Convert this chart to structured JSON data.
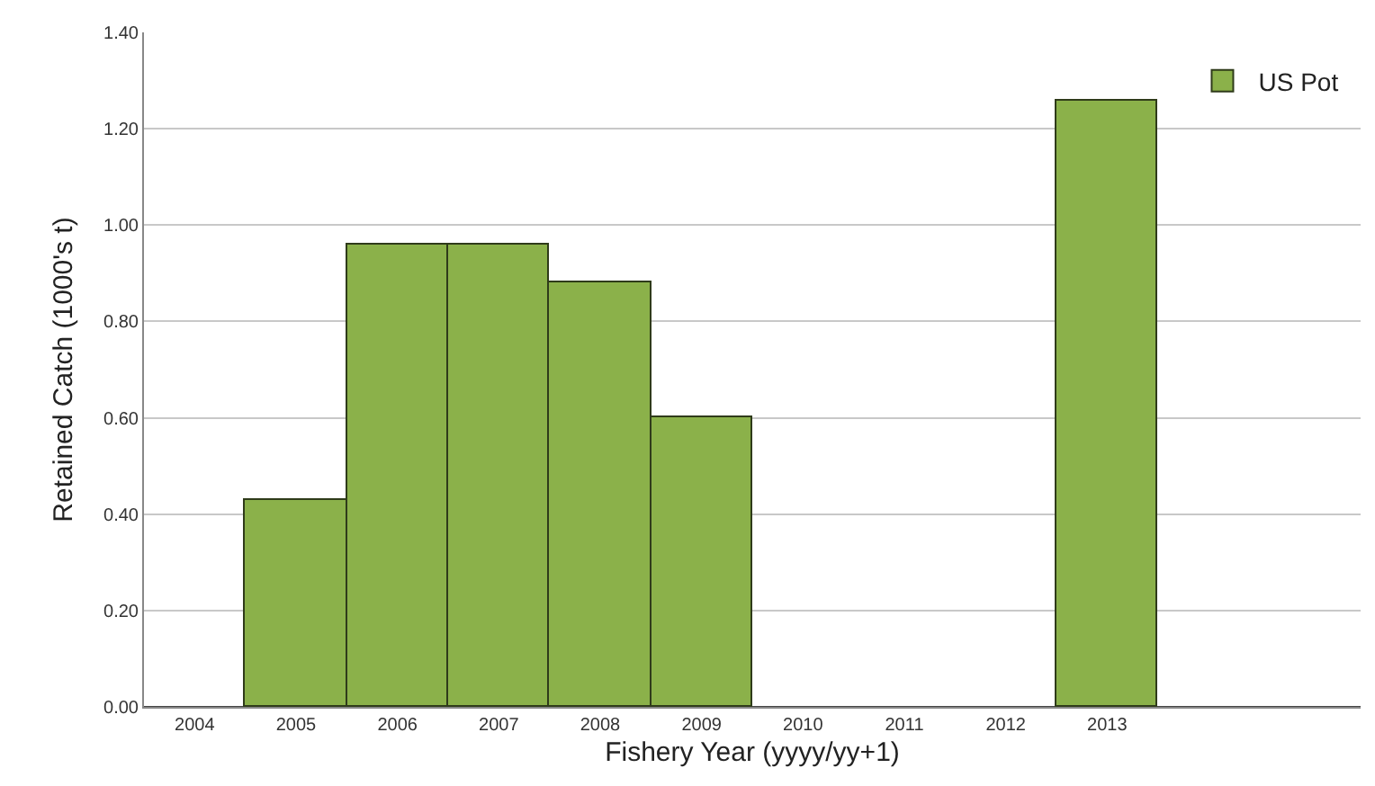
{
  "chart_data": {
    "type": "bar",
    "xlabel": "Fishery Year (yyyy/yy+1)",
    "ylabel": "Retained Catch (1000's t)",
    "categories": [
      "2004",
      "2005",
      "2006",
      "2007",
      "2008",
      "2009",
      "2010",
      "2011",
      "2012",
      "2013",
      null,
      null
    ],
    "series": [
      {
        "name": "US Pot",
        "color": "#8bb14a",
        "values": [
          null,
          0.43,
          0.96,
          0.96,
          0.88,
          0.6,
          null,
          null,
          null,
          1.26,
          null,
          null
        ]
      }
    ],
    "ylim": [
      0,
      1.4
    ],
    "yticks": [
      {
        "value": 0,
        "label": "0.00"
      },
      {
        "value": 0.2,
        "label": "0.20"
      },
      {
        "value": 0.4,
        "label": "0.40"
      },
      {
        "value": 0.6,
        "label": "0.60"
      },
      {
        "value": 0.8,
        "label": "0.80"
      },
      {
        "value": 1.0,
        "label": "1.00"
      },
      {
        "value": 1.2,
        "label": "1.20"
      },
      {
        "value": 1.4,
        "label": "1.40"
      }
    ],
    "grid": "y",
    "legend": "top right"
  }
}
